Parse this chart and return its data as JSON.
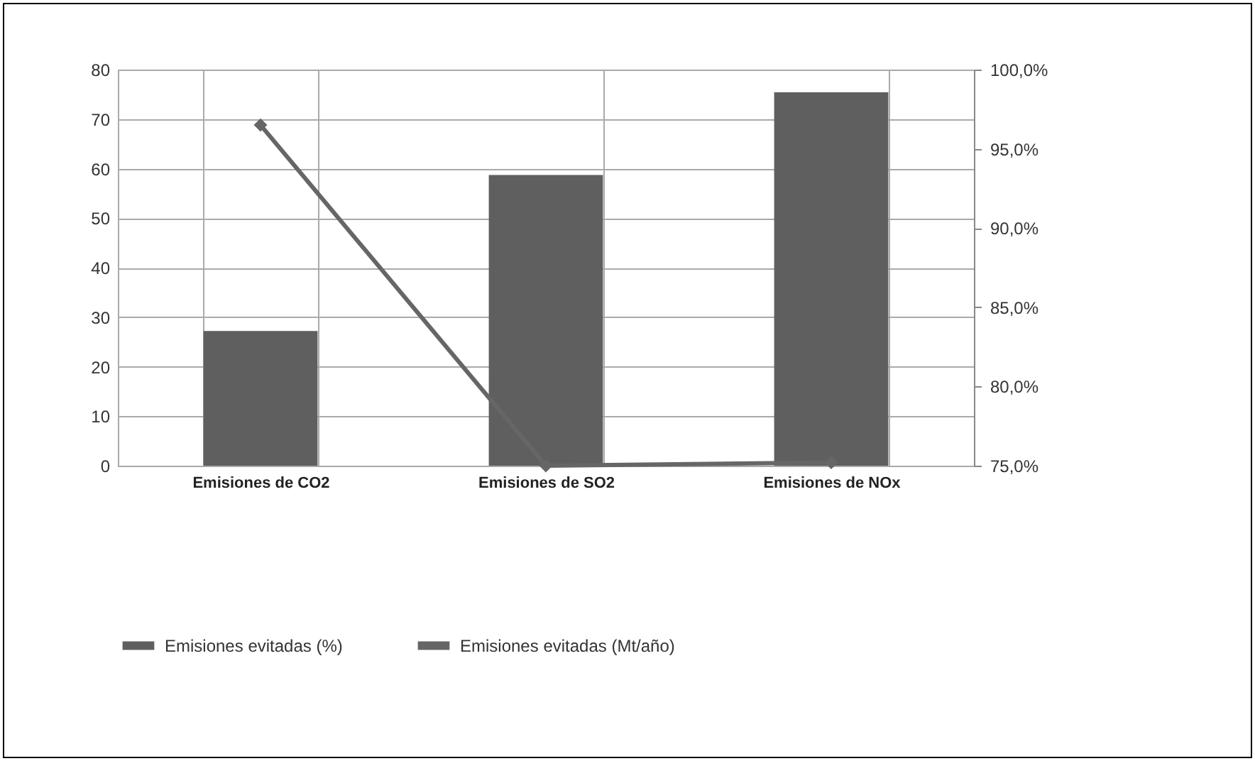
{
  "chart_data": {
    "type": "bar",
    "categories": [
      "Emisiones de CO2",
      "Emisiones de SO2",
      "Emisiones de NOx"
    ],
    "series": [
      {
        "name": "Emisiones evitadas (%)",
        "color": "#5f5f5f",
        "values": [
          27.2,
          58.7,
          75.4
        ]
      },
      {
        "name": "Emisiones evitadas (Mt/año)",
        "type": "line",
        "axis": "y2",
        "color": "#666666",
        "values": [
          96.5,
          75.0,
          75.2
        ],
        "marker": "diamond",
        "line_style": "solid"
      }
    ],
    "ylim": [
      0,
      80
    ],
    "yticks": [
      0,
      10,
      20,
      30,
      40,
      50,
      60,
      70,
      80
    ],
    "y2lim": [
      75,
      100
    ],
    "y2ticks": [
      {
        "value": 75,
        "label": "75,0%"
      },
      {
        "value": 80,
        "label": "80,0%"
      },
      {
        "value": 85,
        "label": "85,0%"
      },
      {
        "value": 90,
        "label": "90,0%"
      },
      {
        "value": 95,
        "label": "95,0%"
      },
      {
        "value": 100,
        "label": "100,0%"
      }
    ],
    "grid": true,
    "legend": "bottom"
  }
}
